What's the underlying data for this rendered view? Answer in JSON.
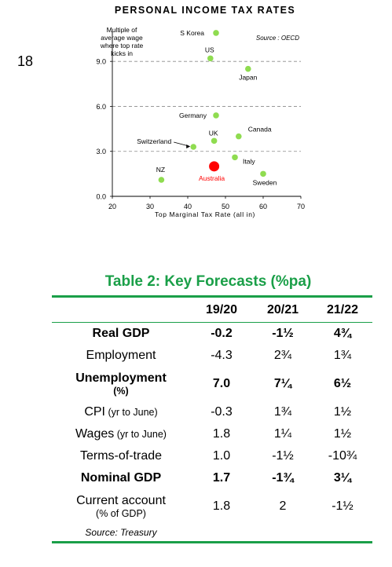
{
  "page_number": "18",
  "chart_data": {
    "type": "scatter",
    "title": "PERSONAL INCOME TAX RATES",
    "ylabel_lines": [
      "Multiple of",
      "average wage",
      "where top rate",
      "kicks in"
    ],
    "xlabel": "Top Marginal Tax Rate (all in)",
    "source": "Source : OECD",
    "xlim": [
      20,
      70
    ],
    "ylim": [
      0,
      11
    ],
    "xticks": [
      20,
      30,
      40,
      50,
      60,
      70
    ],
    "xtick_labels": [
      "20",
      "30",
      "40",
      "50",
      "60",
      "70"
    ],
    "yticks": [
      0,
      3,
      6,
      9
    ],
    "ytick_labels": [
      "0.0",
      "3.0",
      "6.0",
      "9.0"
    ],
    "grid": "horizontal dashed",
    "point_color": "#8fdc50",
    "highlight_color": "#ff0000",
    "points": [
      {
        "label": "S Korea",
        "x": 47.5,
        "y": 10.9
      },
      {
        "label": "US",
        "x": 46.0,
        "y": 9.2
      },
      {
        "label": "Japan",
        "x": 56.0,
        "y": 8.5
      },
      {
        "label": "Germany",
        "x": 47.5,
        "y": 5.4
      },
      {
        "label": "Canada",
        "x": 53.5,
        "y": 4.0
      },
      {
        "label": "UK",
        "x": 47.0,
        "y": 3.7
      },
      {
        "label": "Switzerland",
        "x": 41.5,
        "y": 3.3
      },
      {
        "label": "Italy",
        "x": 52.5,
        "y": 2.6
      },
      {
        "label": "NZ",
        "x": 33.0,
        "y": 1.1
      },
      {
        "label": "Sweden",
        "x": 60.0,
        "y": 1.5
      },
      {
        "label": "Australia",
        "x": 47.0,
        "y": 2.0,
        "highlight": true
      }
    ]
  },
  "forecast_table": {
    "title": "Table 2: Key Forecasts (%pa)",
    "headers": [
      "",
      "19/20",
      "20/21",
      "21/22"
    ],
    "rows": [
      {
        "label": "Real GDP",
        "values": [
          "-0.2",
          "-1½",
          "4¾"
        ],
        "bold": true
      },
      {
        "label": "Employment",
        "values": [
          "-4.3",
          "2¾",
          "1¾"
        ],
        "bold": false
      },
      {
        "label": "Unemployment",
        "sublabel": "(%)",
        "values": [
          "7.0",
          "7¼",
          "6½"
        ],
        "bold": true
      },
      {
        "label": "CPI",
        "inline_sub": "(yr to June)",
        "values": [
          "-0.3",
          "1¾",
          "1½"
        ],
        "bold": false
      },
      {
        "label": "Wages",
        "inline_sub": "(yr to June)",
        "values": [
          "1.8",
          "1¼",
          "1½"
        ],
        "bold": false
      },
      {
        "label": "Terms-of-trade",
        "values": [
          "1.0",
          "-1½",
          "-10¾"
        ],
        "bold": false
      },
      {
        "label": "Nominal GDP",
        "values": [
          "1.7",
          "-1¾",
          "3¼"
        ],
        "bold": true
      },
      {
        "label": "Current account",
        "sublabel": "(% of GDP)",
        "values": [
          "1.8",
          "2",
          "-1½"
        ],
        "bold": false
      }
    ],
    "source": "Source: Treasury"
  }
}
